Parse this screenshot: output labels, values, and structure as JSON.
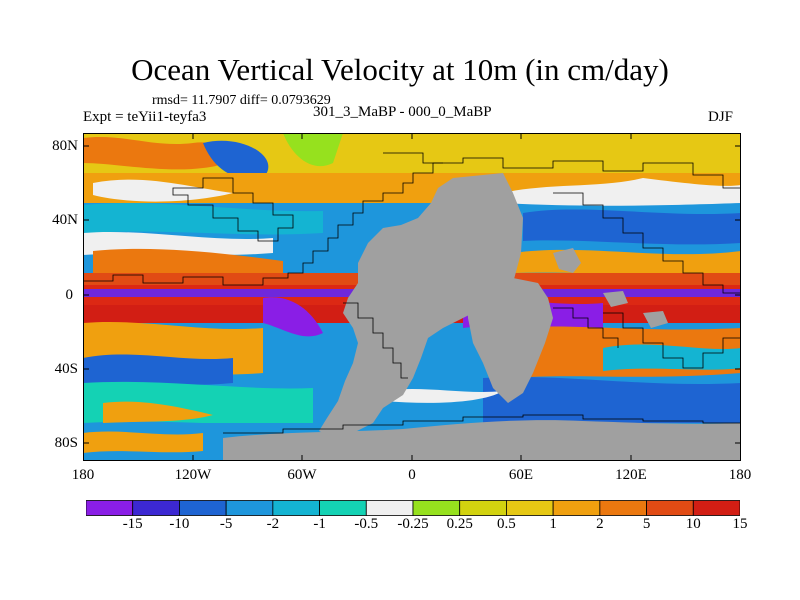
{
  "title": "Ocean Vertical Velocity at 10m (in cm/day)",
  "stats": "rmsd= 11.7907 diff= 0.0793629",
  "experiment": "Expt = teYii1-teyfa3",
  "period": "301_3_MaBP - 000_0_MaBP",
  "season": "DJF",
  "lat_ticks": [
    "80N",
    "40N",
    "0",
    "40S",
    "80S"
  ],
  "lon_ticks": [
    "180",
    "120W",
    "60W",
    "0",
    "60E",
    "120E",
    "180"
  ],
  "colorbar": {
    "labels": [
      "-15",
      "-10",
      "-5",
      "-2",
      "-1",
      "-0.5",
      "-0.25",
      "0.25",
      "0.5",
      "1",
      "2",
      "5",
      "10",
      "15"
    ],
    "colors": [
      "#8a1ee6",
      "#3c28d2",
      "#1e64d2",
      "#1e96dc",
      "#14b4d2",
      "#14d2b4",
      "#f0f0f0",
      "#96e11e",
      "#d2d20f",
      "#e6c814",
      "#f0a00f",
      "#eb780f",
      "#e14b14",
      "#d21e14"
    ]
  },
  "land_color": "#a0a0a0",
  "colors": {
    "tropical_red": "#dc2814",
    "upwelling_purple": "#6e28dc"
  }
}
